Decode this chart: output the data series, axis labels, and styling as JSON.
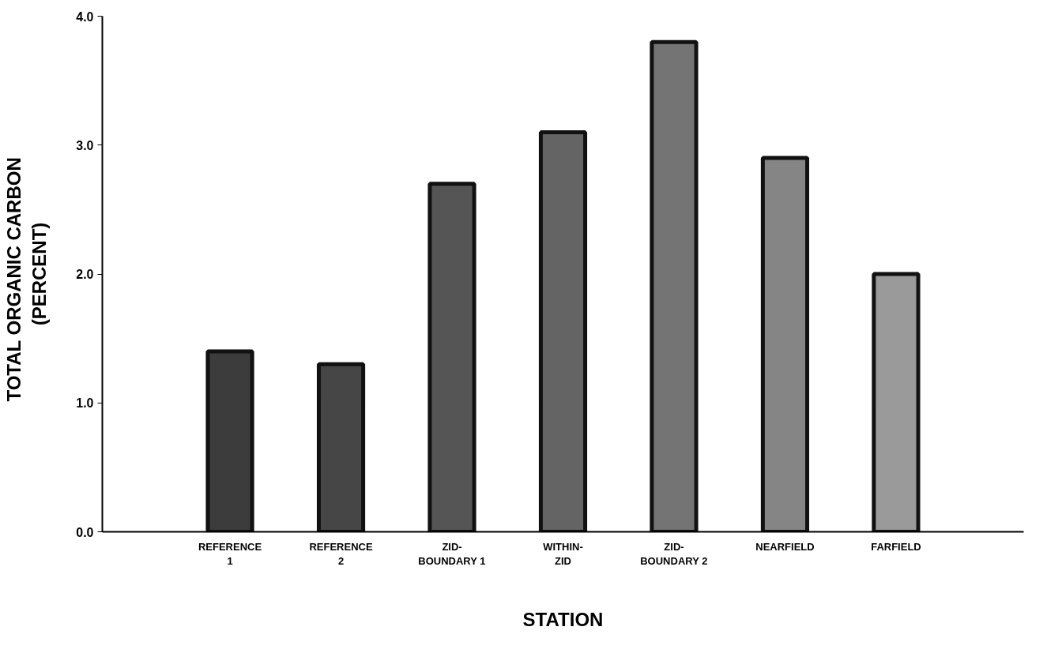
{
  "chart_data": {
    "type": "bar",
    "xlabel": "STATION",
    "ylabel": "TOTAL  ORGANIC  CARBON\n(PERCENT)",
    "categories": [
      "REFERENCE\n1",
      "REFERENCE\n2",
      "ZID-\nBOUNDARY 1",
      "WITHIN-\nZID",
      "ZID-\nBOUNDARY 2",
      "NEARFIELD",
      "FARFIELD"
    ],
    "values": [
      1.4,
      1.3,
      2.7,
      3.1,
      3.8,
      2.9,
      2.0
    ],
    "colors": [
      "#3c3c3c",
      "#464646",
      "#555555",
      "#646464",
      "#747474",
      "#858585",
      "#9a9a9a"
    ],
    "ylim": [
      0,
      4.0
    ],
    "yticks": [
      {
        "value": 0,
        "label": "0.0"
      },
      {
        "value": 1,
        "label": "1.0"
      },
      {
        "value": 2,
        "label": "2.0"
      },
      {
        "value": 3,
        "label": "3.0"
      },
      {
        "value": 4,
        "label": "4.0"
      }
    ],
    "grid": false
  }
}
